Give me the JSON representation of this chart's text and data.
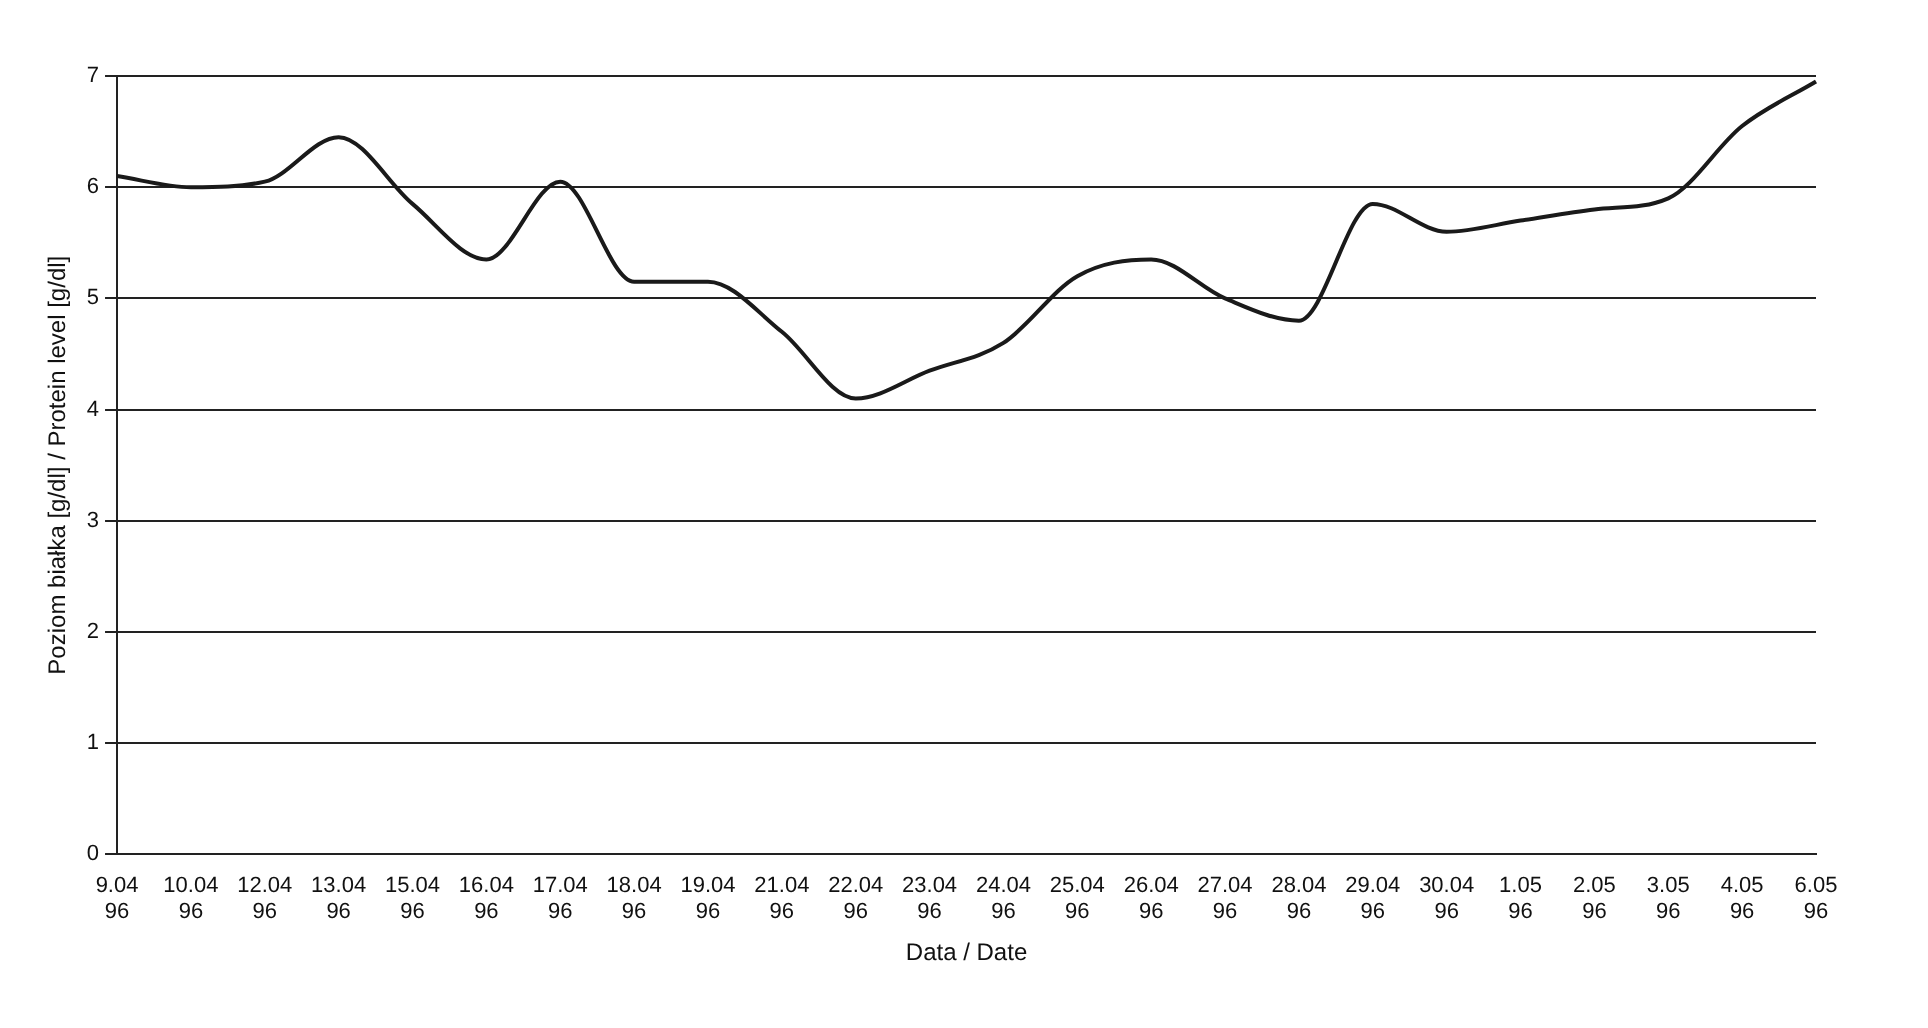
{
  "chart_data": {
    "type": "line",
    "xlabel": "Data / Date",
    "ylabel": "Poziom białka [g/dl] / Protein level [g/dl]",
    "categories": [
      "9.04\n96",
      "10.04\n96",
      "12.04\n96",
      "13.04\n96",
      "15.04\n96",
      "16.04\n96",
      "17.04\n96",
      "18.04\n96",
      "19.04\n96",
      "21.04\n96",
      "22.04\n96",
      "23.04\n96",
      "24.04\n96",
      "25.04\n96",
      "26.04\n96",
      "27.04\n96",
      "28.04\n96",
      "29.04\n96",
      "30.04\n96",
      "1.05\n96",
      "2.05\n96",
      "3.05\n96",
      "4.05\n96",
      "6.05\n96"
    ],
    "series": [
      {
        "color": "#1a1a1a",
        "values": [
          6.1,
          6.0,
          6.05,
          6.45,
          5.85,
          5.35,
          6.05,
          5.15,
          5.15,
          4.7,
          4.1,
          4.35,
          4.6,
          5.2,
          5.35,
          5.0,
          4.8,
          5.85,
          5.6,
          5.7,
          5.8,
          5.9,
          6.55,
          6.95
        ]
      }
    ],
    "ylim": [
      0,
      7
    ],
    "yticks": [
      0,
      1,
      2,
      3,
      4,
      5,
      6,
      7
    ],
    "grid": "y",
    "legend": false,
    "marker": "none",
    "line_style": "solid"
  }
}
